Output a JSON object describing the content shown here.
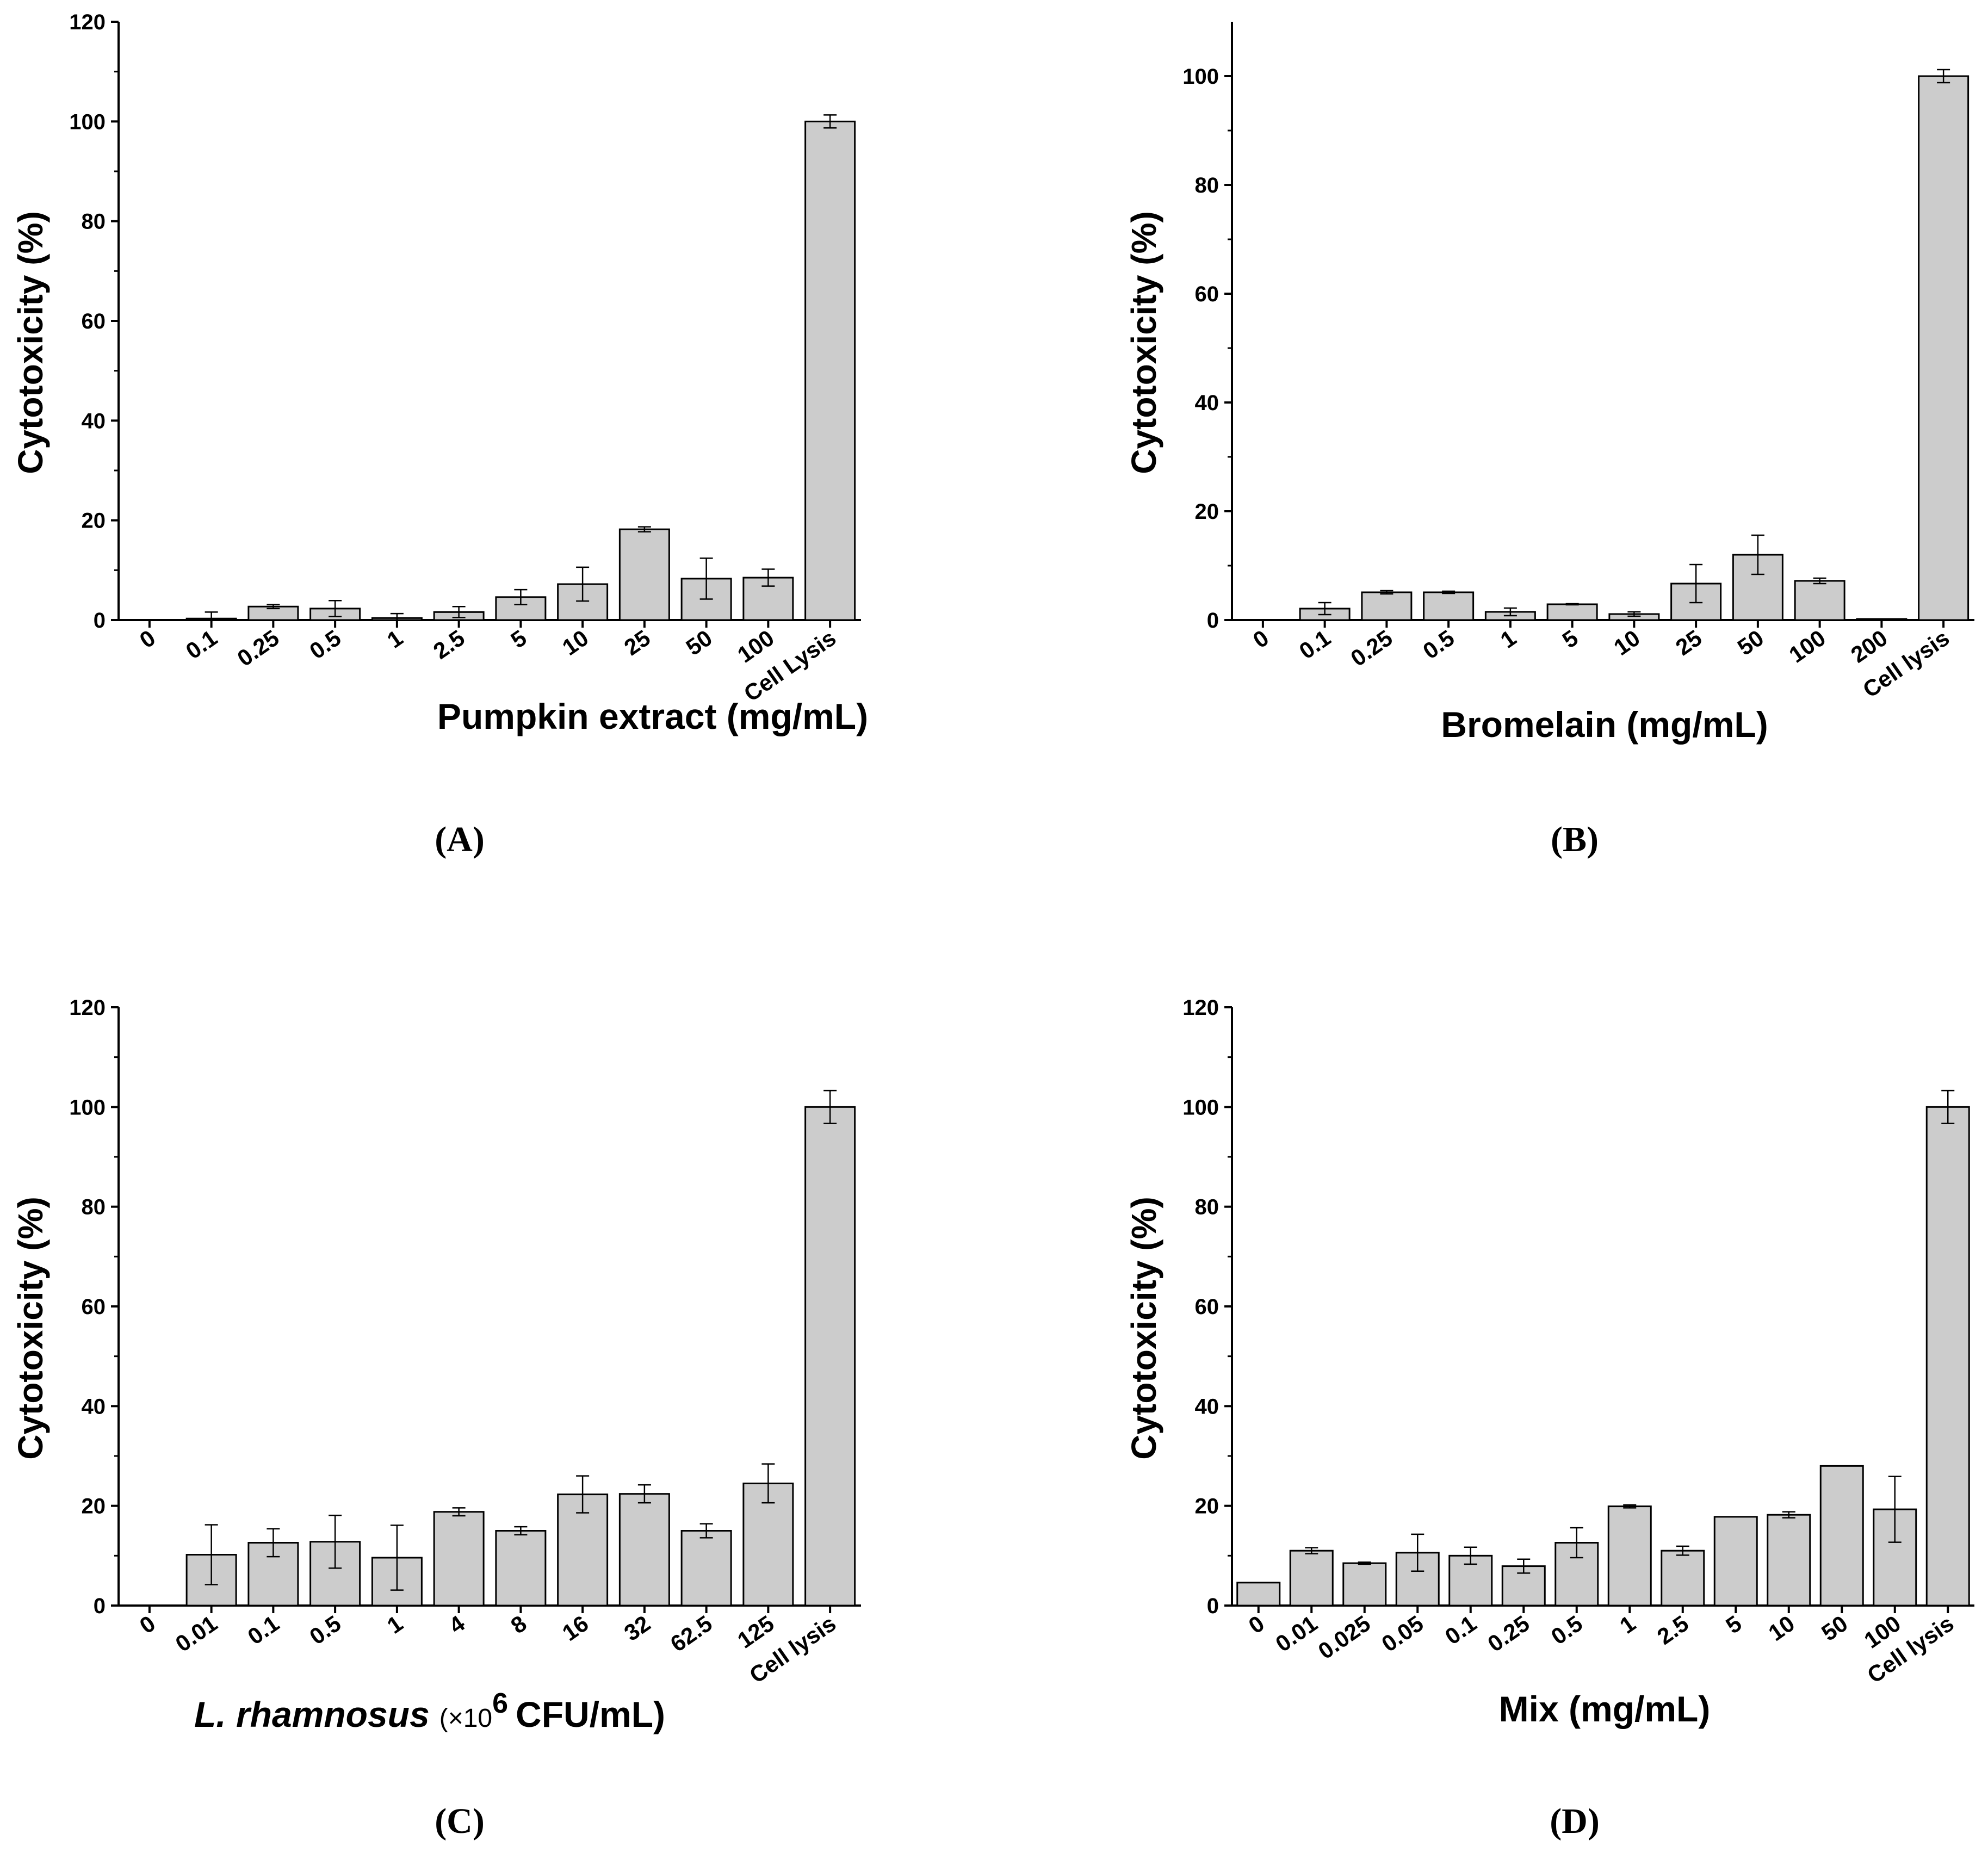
{
  "chart_data": [
    {
      "type": "bar",
      "panel_label": "(A)",
      "xlabel": "Pumpkin extract (mg/mL)",
      "ylabel": "Cytotoxicity (%)",
      "ylim": [
        0,
        120
      ],
      "yticks": [
        0,
        20,
        40,
        60,
        80,
        100,
        120
      ],
      "categories": [
        "0",
        "0.1",
        "0.25",
        "0.5",
        "1",
        "2.5",
        "5",
        "10",
        "25",
        "50",
        "100",
        "Cell Lysis"
      ],
      "values": [
        0,
        0.3,
        2.7,
        2.3,
        0.4,
        1.6,
        4.6,
        7.2,
        18.2,
        8.3,
        8.5,
        100
      ],
      "errors": [
        0,
        1.3,
        0.4,
        1.6,
        0.9,
        1.1,
        1.5,
        3.4,
        0.5,
        4.1,
        1.7,
        1.3
      ],
      "color": "#cccccc"
    },
    {
      "type": "bar",
      "panel_label": "(B)",
      "xlabel": "Bromelain (mg/mL)",
      "ylabel": "Cytotoxicity (%)",
      "ylim": [
        0,
        110
      ],
      "yticks": [
        0,
        20,
        40,
        60,
        80,
        100
      ],
      "categories": [
        "0",
        "0.1",
        "0.25",
        "0.5",
        "1",
        "5",
        "10",
        "25",
        "50",
        "100",
        "200",
        "Cell lysis"
      ],
      "values": [
        0,
        2.1,
        5.1,
        5.1,
        1.5,
        2.9,
        1.1,
        6.7,
        12.0,
        7.2,
        0.2,
        100
      ],
      "errors": [
        0,
        1.1,
        0.3,
        0.2,
        0.7,
        0.1,
        0.4,
        3.5,
        3.6,
        0.5,
        0,
        1.2
      ],
      "color": "#cccccc"
    },
    {
      "type": "bar",
      "panel_label": "(C)",
      "xlabel_italic": "L. rhamnosus",
      "xlabel_pre": "(×10",
      "xlabel_sup": "6",
      "xlabel_post": "CFU/mL)",
      "ylabel": "Cytotoxicity (%)",
      "ylim": [
        0,
        120
      ],
      "yticks": [
        0,
        20,
        40,
        60,
        80,
        100,
        120
      ],
      "categories": [
        "0",
        "0.01",
        "0.1",
        "0.5",
        "1",
        "4",
        "8",
        "16",
        "32",
        "62.5",
        "125",
        "Cell lysis"
      ],
      "values": [
        0,
        10.2,
        12.6,
        12.8,
        9.6,
        18.8,
        15.0,
        22.3,
        22.4,
        15.0,
        24.5,
        100
      ],
      "errors": [
        0,
        6.0,
        2.8,
        5.3,
        6.5,
        0.8,
        0.8,
        3.7,
        1.8,
        1.4,
        3.9,
        3.3
      ],
      "color": "#cccccc"
    },
    {
      "type": "bar",
      "panel_label": "(D)",
      "xlabel": "Mix (mg/mL)",
      "ylabel": "Cytotoxicity (%)",
      "ylim": [
        0,
        120
      ],
      "yticks": [
        0,
        20,
        40,
        60,
        80,
        100,
        120
      ],
      "categories": [
        "0",
        "0.01",
        "0.025",
        "0.05",
        "0.1",
        "0.25",
        "0.5",
        "1",
        "2.5",
        "5",
        "10",
        "50",
        "100",
        "Cell lysis"
      ],
      "values": [
        4.6,
        11.0,
        8.5,
        10.6,
        10.0,
        7.9,
        12.6,
        19.9,
        11.0,
        17.8,
        18.2,
        28.0,
        19.3,
        100
      ],
      "errors": [
        0,
        0.6,
        0.2,
        3.7,
        1.7,
        1.4,
        3.0,
        0.3,
        0.9,
        0,
        0.6,
        0,
        6.6,
        3.3
      ],
      "color": "#cccccc"
    }
  ]
}
